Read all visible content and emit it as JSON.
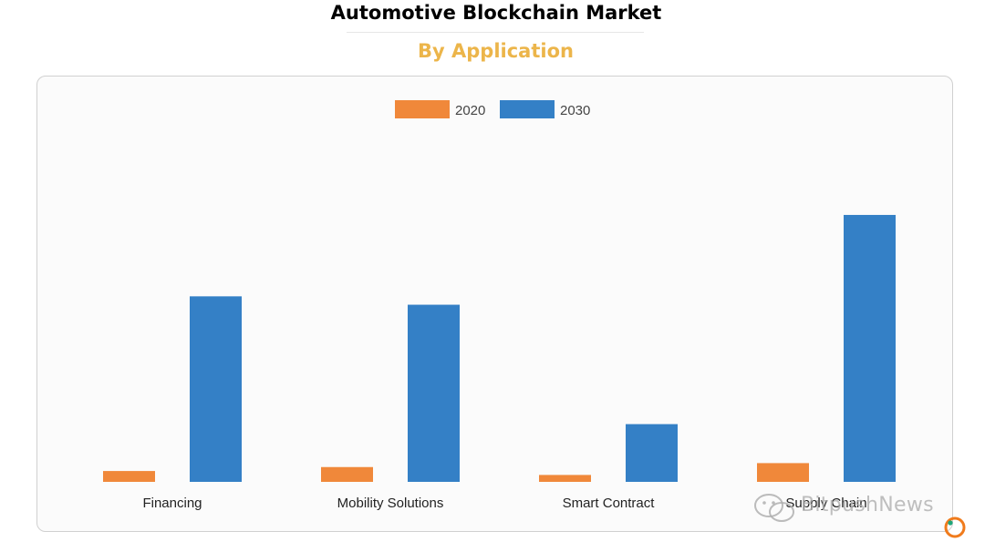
{
  "header": {
    "title": "Automotive Blockchain Market",
    "subtitle": "By Application"
  },
  "colors": {
    "series_2020": "#f0883a",
    "series_2030": "#3480c6",
    "subtitle": "#ecb54a"
  },
  "watermark": {
    "text": "BitpushNews",
    "icon": "wechat-icon"
  },
  "chart_data": {
    "type": "bar",
    "categories": [
      "Financing",
      "Mobility Solutions",
      "Smart Contract",
      "Supply Chain"
    ],
    "series": [
      {
        "name": "2020",
        "values": [
          2.2,
          3.0,
          1.4,
          3.8
        ]
      },
      {
        "name": "2030",
        "values": [
          37.6,
          35.9,
          11.7,
          54.1
        ]
      }
    ],
    "title": "Automotive Blockchain Market",
    "subtitle": "By Application",
    "xlabel": "",
    "ylabel": "",
    "ylim": [
      0,
      60
    ],
    "legend": "top-center",
    "grid": false
  }
}
